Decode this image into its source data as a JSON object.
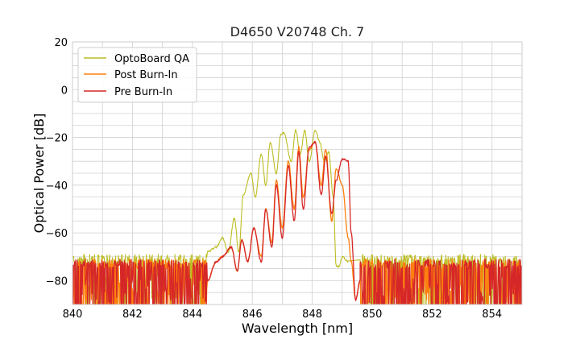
{
  "chart_data": {
    "type": "line",
    "title": "D4650 V20748 Ch. 7",
    "xlabel": "Wavelength [nm]",
    "ylabel": "Optical Power [dB]",
    "xlim": [
      840,
      855
    ],
    "ylim": [
      -90,
      20
    ],
    "xticks": [
      840,
      842,
      844,
      846,
      848,
      850,
      852,
      854
    ],
    "yticks": [
      -80,
      -60,
      -40,
      -20,
      0,
      20
    ],
    "xtick_labels": [
      "840",
      "842",
      "844",
      "846",
      "848",
      "850",
      "852",
      "854"
    ],
    "ytick_labels": [
      "−80",
      "−60",
      "−40",
      "−20",
      "0",
      "20"
    ],
    "grid": true,
    "legend_position": "top-left",
    "noise_floor_db": -90,
    "series": [
      {
        "name": "OptoBoard QA",
        "color": "#bcbd22",
        "x": [
          844.5,
          844.8,
          845.0,
          845.2,
          845.4,
          845.55,
          845.7,
          845.95,
          846.1,
          846.3,
          846.45,
          846.6,
          846.8,
          846.95,
          847.05,
          847.3,
          847.45,
          847.6,
          847.75,
          847.9,
          848.1,
          848.25,
          848.4,
          848.55,
          848.7,
          848.8,
          848.9,
          849.0,
          849.2
        ],
        "values": [
          -68,
          -66,
          -62,
          -68,
          -54,
          -68,
          -44,
          -35,
          -45,
          -27,
          -40,
          -22,
          -35,
          -19,
          -18,
          -30,
          -17,
          -27,
          -17,
          -30,
          -17,
          -22,
          -30,
          -26,
          -45,
          -74,
          -74,
          -70,
          -72
        ]
      },
      {
        "name": "Post Burn-In",
        "color": "#ff7f0e",
        "x": [
          844.5,
          844.8,
          845.0,
          845.3,
          845.5,
          845.65,
          845.85,
          846.05,
          846.3,
          846.45,
          846.65,
          846.8,
          847.0,
          847.2,
          847.4,
          847.55,
          847.7,
          847.9,
          848.1,
          848.3,
          848.45,
          848.65,
          848.8,
          849.0,
          849.2,
          849.3,
          849.45,
          849.6
        ],
        "values": [
          -80,
          -72,
          -70,
          -66,
          -76,
          -63,
          -72,
          -58,
          -70,
          -50,
          -64,
          -38,
          -58,
          -30,
          -50,
          -24,
          -45,
          -25,
          -22,
          -40,
          -25,
          -55,
          -33,
          -40,
          -62,
          -72,
          -88,
          -80
        ]
      },
      {
        "name": "Pre Burn-In",
        "color": "#d62728",
        "x": [
          844.5,
          844.8,
          845.0,
          845.3,
          845.5,
          845.65,
          845.85,
          846.05,
          846.3,
          846.45,
          846.65,
          846.8,
          847.0,
          847.2,
          847.4,
          847.55,
          847.7,
          847.9,
          848.1,
          848.3,
          848.45,
          848.65,
          848.8,
          849.0,
          849.2,
          849.3,
          849.45,
          849.6
        ],
        "values": [
          -80,
          -72,
          -70,
          -66,
          -76,
          -63,
          -72,
          -58,
          -72,
          -50,
          -66,
          -40,
          -62,
          -32,
          -55,
          -26,
          -50,
          -24,
          -22,
          -44,
          -28,
          -52,
          -38,
          -29,
          -30,
          -60,
          -88,
          -80
        ]
      }
    ]
  }
}
